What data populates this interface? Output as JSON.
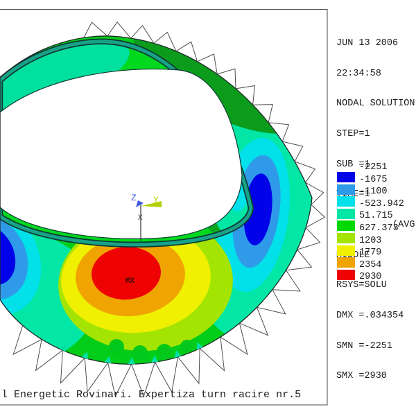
{
  "window": {
    "panel_lines": [
      "JUN 13 2006",
      "22:34:58",
      "NODAL SOLUTION",
      "STEP=1",
      "SUB =1",
      "TIME=1",
      "SY        (AVG)",
      "MIDDLE",
      "RSYS=SOLU",
      "DMX =.034354",
      "SMN =-2251",
      "SMX =2930"
    ],
    "caption": "l Energetic Rovinari. Expertiza turn racire nr.5"
  },
  "legend": {
    "labels": [
      "-2251",
      "-1675",
      "-1100",
      "-523.942",
      "51.715",
      "627.373",
      "1203",
      "1779",
      "2354",
      "2930"
    ],
    "colors": [
      "#0202e8",
      "#2f9be8",
      "#02e0ea",
      "#02e6a6",
      "#02d902",
      "#a4e402",
      "#f0f002",
      "#efa402",
      "#ee0202"
    ]
  },
  "plot": {
    "max_label": "MX",
    "triad": {
      "x": "X",
      "y": "Y",
      "z": "Z"
    },
    "accent_colors": {
      "triad_z": "#3b5be0",
      "triad_y": "#b4cf07",
      "flange_teal": "#18a389",
      "edge_dark": "#0d3b33"
    }
  }
}
